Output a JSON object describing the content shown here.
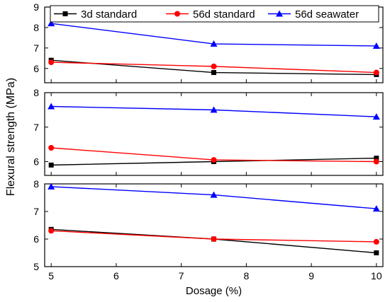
{
  "chart_data": {
    "type": "line",
    "ylabel": "Flexural strength (MPa)",
    "xlabel": "Dosage (%)",
    "x": [
      5,
      7.5,
      10
    ],
    "xlim": [
      4.9,
      10.1
    ],
    "xticks": [
      5,
      6,
      7,
      8,
      9,
      10
    ],
    "grid": false,
    "legend": {
      "placement": "top",
      "entries": [
        "3d standard",
        "56d standard",
        "56d seawater"
      ]
    },
    "colors": {
      "3d standard": "#000000",
      "56d standard": "#ff0000",
      "56d seawater": "#0000ff"
    },
    "panels": [
      {
        "ylim": [
          5.3,
          9.0
        ],
        "yticks": [
          5,
          6,
          7,
          8,
          9
        ],
        "ytick_labels": [
          "5",
          "6",
          "7",
          "8",
          "9"
        ],
        "series": [
          {
            "name": "3d standard",
            "values": [
              6.4,
              5.8,
              5.7
            ]
          },
          {
            "name": "56d standard",
            "values": [
              6.3,
              6.1,
              5.8
            ]
          },
          {
            "name": "56d seawater",
            "values": [
              8.2,
              7.2,
              7.1
            ]
          }
        ]
      },
      {
        "ylim": [
          5.6,
          8.0
        ],
        "yticks": [
          6,
          7,
          8
        ],
        "ytick_labels": [
          "6",
          "7",
          "8"
        ],
        "series": [
          {
            "name": "3d standard",
            "values": [
              5.9,
              6.0,
              6.1
            ]
          },
          {
            "name": "56d standard",
            "values": [
              6.4,
              6.05,
              6.0
            ]
          },
          {
            "name": "56d seawater",
            "values": [
              7.6,
              7.5,
              7.3
            ]
          }
        ]
      },
      {
        "ylim": [
          5.0,
          8.0
        ],
        "yticks": [
          5,
          6,
          7,
          8
        ],
        "ytick_labels": [
          "5",
          "6",
          "7",
          "8"
        ],
        "series": [
          {
            "name": "3d standard",
            "values": [
              6.35,
              6.0,
              5.5
            ]
          },
          {
            "name": "56d standard",
            "values": [
              6.3,
              6.0,
              5.9
            ]
          },
          {
            "name": "56d seawater",
            "values": [
              7.9,
              7.6,
              7.1
            ]
          }
        ]
      }
    ]
  }
}
